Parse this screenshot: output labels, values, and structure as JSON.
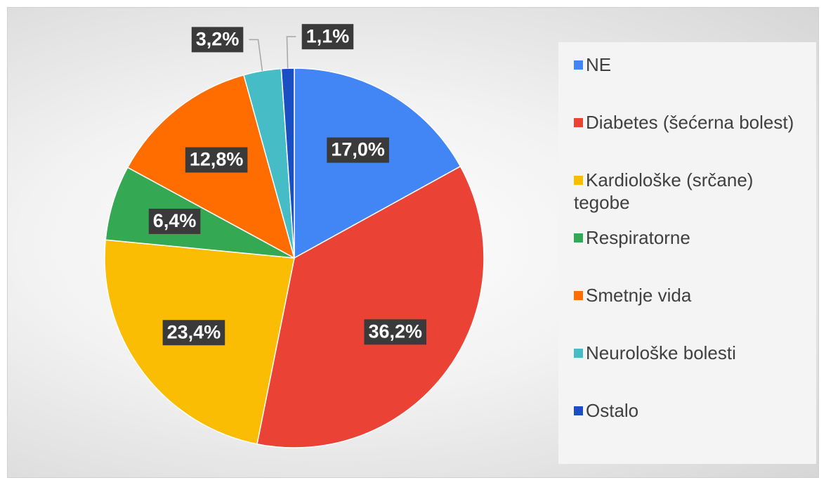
{
  "chart_data": {
    "type": "pie",
    "categories": [
      "NE",
      "Diabetes (šećerna bolest)",
      "Kardiološke (srčane) tegobe",
      "Respiratorne",
      "Smetnje vida",
      "Neurološke bolesti",
      "Ostalo"
    ],
    "values": [
      17.0,
      36.2,
      23.4,
      6.4,
      12.8,
      3.2,
      1.1
    ],
    "value_labels": [
      "17,0%",
      "36,2%",
      "23,4%",
      "6,4%",
      "12,8%",
      "3,2%",
      "1,1%"
    ],
    "colors": [
      "#4285f4",
      "#ea4335",
      "#fbbc04",
      "#34a853",
      "#ff6d01",
      "#46bdc6",
      "#1a4fc4"
    ],
    "legend": "right"
  }
}
